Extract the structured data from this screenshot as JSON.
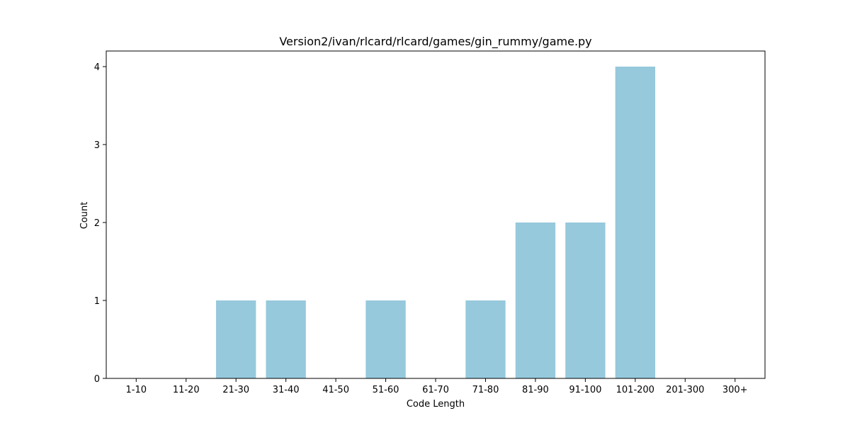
{
  "chart_data": {
    "type": "bar",
    "title": "Version2/ivan/rlcard/rlcard/games/gin_rummy/game.py",
    "xlabel": "Code Length",
    "ylabel": "Count",
    "categories": [
      "1-10",
      "11-20",
      "21-30",
      "31-40",
      "41-50",
      "51-60",
      "61-70",
      "71-80",
      "81-90",
      "91-100",
      "101-200",
      "201-300",
      "300+"
    ],
    "values": [
      0,
      0,
      1,
      1,
      0,
      1,
      0,
      1,
      2,
      2,
      4,
      0,
      0
    ],
    "yticks": [
      "0",
      "1",
      "2",
      "3",
      "4"
    ],
    "ylim": [
      0,
      4.2
    ],
    "bar_color": "#96c9dc",
    "grid": false,
    "legend": "none"
  }
}
